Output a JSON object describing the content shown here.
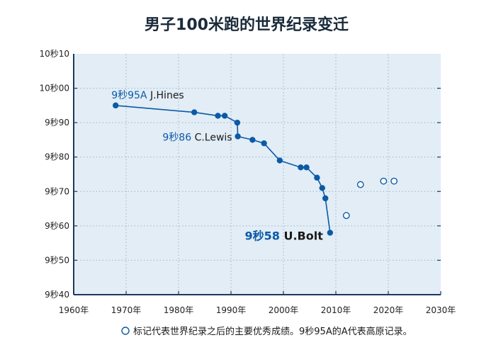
{
  "chart_data": {
    "type": "scatter",
    "title": "男子100米跑的世界纪录变迁",
    "x_tick_labels": [
      "1960年",
      "1970年",
      "1980年",
      "1990年",
      "2000年",
      "2010年",
      "2020年",
      "2030年"
    ],
    "y_tick_labels": [
      "10秒10",
      "10秒00",
      "9秒90",
      "9秒80",
      "9秒70",
      "9秒60",
      "9秒50",
      "9秒40"
    ],
    "xlim": [
      1960,
      2030
    ],
    "ylim": [
      9.4,
      10.1
    ],
    "grid": true,
    "series": [
      {
        "kind": "world-record",
        "style": "filled-line",
        "points": [
          {
            "x": 1968.0,
            "y": 9.95
          },
          {
            "x": 1983.0,
            "y": 9.93
          },
          {
            "x": 1987.5,
            "y": 9.92
          },
          {
            "x": 1988.8,
            "y": 9.92
          },
          {
            "x": 1991.2,
            "y": 9.9
          },
          {
            "x": 1991.3,
            "y": 9.86
          },
          {
            "x": 1994.1,
            "y": 9.85
          },
          {
            "x": 1996.3,
            "y": 9.84
          },
          {
            "x": 1999.3,
            "y": 9.79
          },
          {
            "x": 2003.3,
            "y": 9.77
          },
          {
            "x": 2004.4,
            "y": 9.77
          },
          {
            "x": 2006.4,
            "y": 9.74
          },
          {
            "x": 2007.4,
            "y": 9.71
          },
          {
            "x": 2008.0,
            "y": 9.68
          },
          {
            "x": 2008.9,
            "y": 9.58
          }
        ]
      },
      {
        "kind": "other-major-results",
        "style": "hollow",
        "points": [
          {
            "x": 2012.0,
            "y": 9.63
          },
          {
            "x": 2014.7,
            "y": 9.72
          },
          {
            "x": 2019.1,
            "y": 9.73
          },
          {
            "x": 2021.1,
            "y": 9.73
          }
        ]
      }
    ],
    "annotations": [
      {
        "time": "9秒95A",
        "name": " J.Hines",
        "x": 1968.0,
        "y": 9.95,
        "style": "normal"
      },
      {
        "time": "9秒86",
        "name": " C.Lewis",
        "x": 1991.3,
        "y": 9.86,
        "style": "normal"
      },
      {
        "time": "9秒58",
        "name": " U.Bolt",
        "x": 2008.9,
        "y": 9.58,
        "style": "big"
      }
    ],
    "footnote": "标记代表世界纪录之后的主要优秀成绩。9秒95A的A代表高原记录。",
    "colors": {
      "plot_bg": "#e2edf6",
      "accent": "#0b5aa6",
      "axis": "#1a3a5c",
      "grid": "#9db4c8",
      "text": "#1a1a1a"
    }
  }
}
